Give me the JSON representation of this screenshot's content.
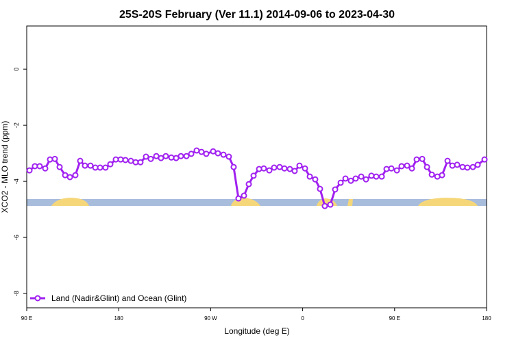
{
  "chart_data": {
    "type": "line",
    "title": "25S-20S February (Ver 11.1)   2014-09-06 to 2023-04-30",
    "x_label": "Longitude (deg E)",
    "y_label": "XCO2 - MLO trend (ppm)",
    "xlim": [
      90,
      540
    ],
    "ylim": [
      -8.51,
      1.54
    ],
    "xticks": [
      {
        "value": 90,
        "label": "90 E"
      },
      180,
      {
        "value": 270,
        "label": "90 W"
      },
      {
        "value": 360,
        "label": "0"
      },
      {
        "value": 450,
        "label": "90 E"
      },
      {
        "value": 540,
        "label": "180"
      }
    ],
    "yticks": [
      0,
      -2,
      -4,
      -6,
      -8
    ],
    "legend": "bottom-left",
    "x": [
      92.7,
      98.0,
      102.7,
      108.1,
      112.8,
      117.5,
      122.2,
      127.6,
      132.3,
      137.6,
      142.3,
      147.0,
      152.4,
      157.1,
      161.8,
      167.1,
      171.8,
      177.2,
      181.9,
      186.6,
      191.9,
      196.6,
      201.3,
      206.7,
      211.4,
      216.8,
      221.4,
      226.1,
      231.5,
      236.2,
      240.9,
      246.3,
      251.0,
      256.3,
      261.0,
      265.7,
      272.4,
      277.1,
      282.5,
      287.8,
      292.5,
      297.2,
      302.6,
      307.3,
      312.0,
      317.4,
      322.0,
      327.4,
      332.1,
      337.5,
      342.2,
      347.5,
      352.2,
      356.9,
      362.3,
      367.0,
      372.3,
      377.0,
      381.7,
      387.1,
      391.8,
      397.2,
      401.9,
      407.2,
      411.9,
      417.3,
      422.0,
      427.3,
      432.0,
      437.4,
      442.1,
      446.8,
      452.2,
      456.8,
      462.2,
      466.9,
      471.6,
      477.0,
      481.7,
      486.4,
      491.8,
      496.4,
      501.8,
      506.5,
      511.2,
      516.5,
      521.2,
      526.6,
      531.3,
      538.0
    ],
    "series": [
      {
        "name": "Land (Nadir&Glint) and Ocean (Glint)",
        "color": "#a020f0",
        "values": [
          -3.61,
          -3.46,
          -3.46,
          -3.54,
          -3.22,
          -3.2,
          -3.49,
          -3.78,
          -3.85,
          -3.78,
          -3.27,
          -3.44,
          -3.44,
          -3.51,
          -3.51,
          -3.51,
          -3.39,
          -3.22,
          -3.22,
          -3.24,
          -3.27,
          -3.32,
          -3.32,
          -3.12,
          -3.2,
          -3.1,
          -3.17,
          -3.1,
          -3.15,
          -3.17,
          -3.1,
          -3.1,
          -3.02,
          -2.9,
          -2.95,
          -3.02,
          -2.93,
          -3.0,
          -3.05,
          -3.12,
          -3.49,
          -4.61,
          -4.51,
          -4.1,
          -3.8,
          -3.56,
          -3.54,
          -3.61,
          -3.51,
          -3.49,
          -3.54,
          -3.56,
          -3.63,
          -3.44,
          -3.54,
          -3.83,
          -3.93,
          -4.27,
          -4.88,
          -4.83,
          -4.29,
          -4.05,
          -3.9,
          -3.98,
          -3.9,
          -3.83,
          -3.93,
          -3.8,
          -3.83,
          -3.83,
          -3.56,
          -3.54,
          -3.61,
          -3.46,
          -3.44,
          -3.54,
          -3.22,
          -3.2,
          -3.49,
          -3.76,
          -3.83,
          -3.78,
          -3.27,
          -3.44,
          -3.41,
          -3.49,
          -3.51,
          -3.49,
          -3.41,
          -3.22
        ]
      }
    ]
  }
}
